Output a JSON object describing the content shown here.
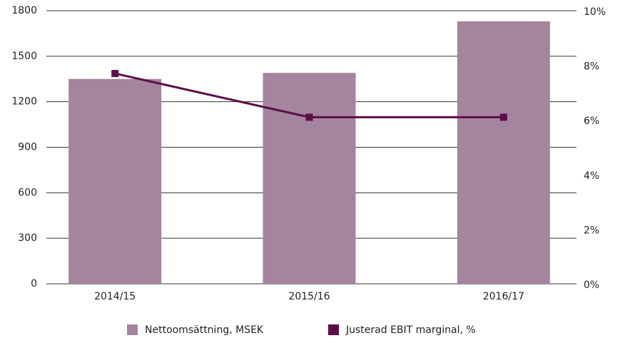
{
  "chart_data": {
    "type": "bar",
    "categories": [
      "2014/15",
      "2015/16",
      "2016/17"
    ],
    "series": [
      {
        "name": "Nettoomsättning, MSEK",
        "color": "#a5849f",
        "values": [
          1350,
          1390,
          1730
        ]
      },
      {
        "name": "Justerad EBIT marginal, %",
        "color": "#5c0f47",
        "values": [
          7.7,
          6.1,
          6.1
        ],
        "axis": "y2"
      }
    ],
    "ylim": [
      0,
      1800
    ],
    "yticks": [
      0,
      300,
      600,
      900,
      1200,
      1500,
      1800
    ],
    "y2lim": [
      0,
      10
    ],
    "y2ticks": [
      {
        "value": 0,
        "label": "0%"
      },
      {
        "value": 2,
        "label": "2%"
      },
      {
        "value": 4,
        "label": "4%"
      },
      {
        "value": 6,
        "label": "6%"
      },
      {
        "value": 8,
        "label": "8%"
      },
      {
        "value": 10,
        "label": "10%"
      }
    ],
    "grid": true,
    "legend": "bottom"
  }
}
